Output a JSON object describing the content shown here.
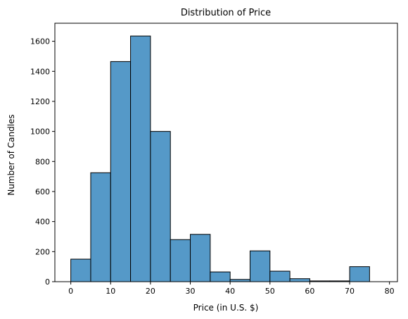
{
  "chart_data": {
    "type": "bar",
    "title": "Distribution of Price",
    "xlabel": "Price (in U.S. $)",
    "ylabel": "Number of Candles",
    "bin_edges": [
      0,
      5,
      10,
      15,
      20,
      25,
      30,
      35,
      40,
      45,
      50,
      55,
      60,
      65,
      70,
      75
    ],
    "values": [
      150,
      725,
      1465,
      1635,
      1000,
      280,
      315,
      65,
      15,
      205,
      70,
      20,
      5,
      5,
      100
    ],
    "xlim": [
      -4,
      82
    ],
    "ylim": [
      0,
      1720
    ],
    "xticks": [
      0,
      10,
      20,
      30,
      40,
      50,
      60,
      70,
      80
    ],
    "yticks": [
      0,
      200,
      400,
      600,
      800,
      1000,
      1200,
      1400,
      1600
    ],
    "bar_color": "#5599c8",
    "edge_color": "#000000",
    "grid": false,
    "legend": null
  }
}
